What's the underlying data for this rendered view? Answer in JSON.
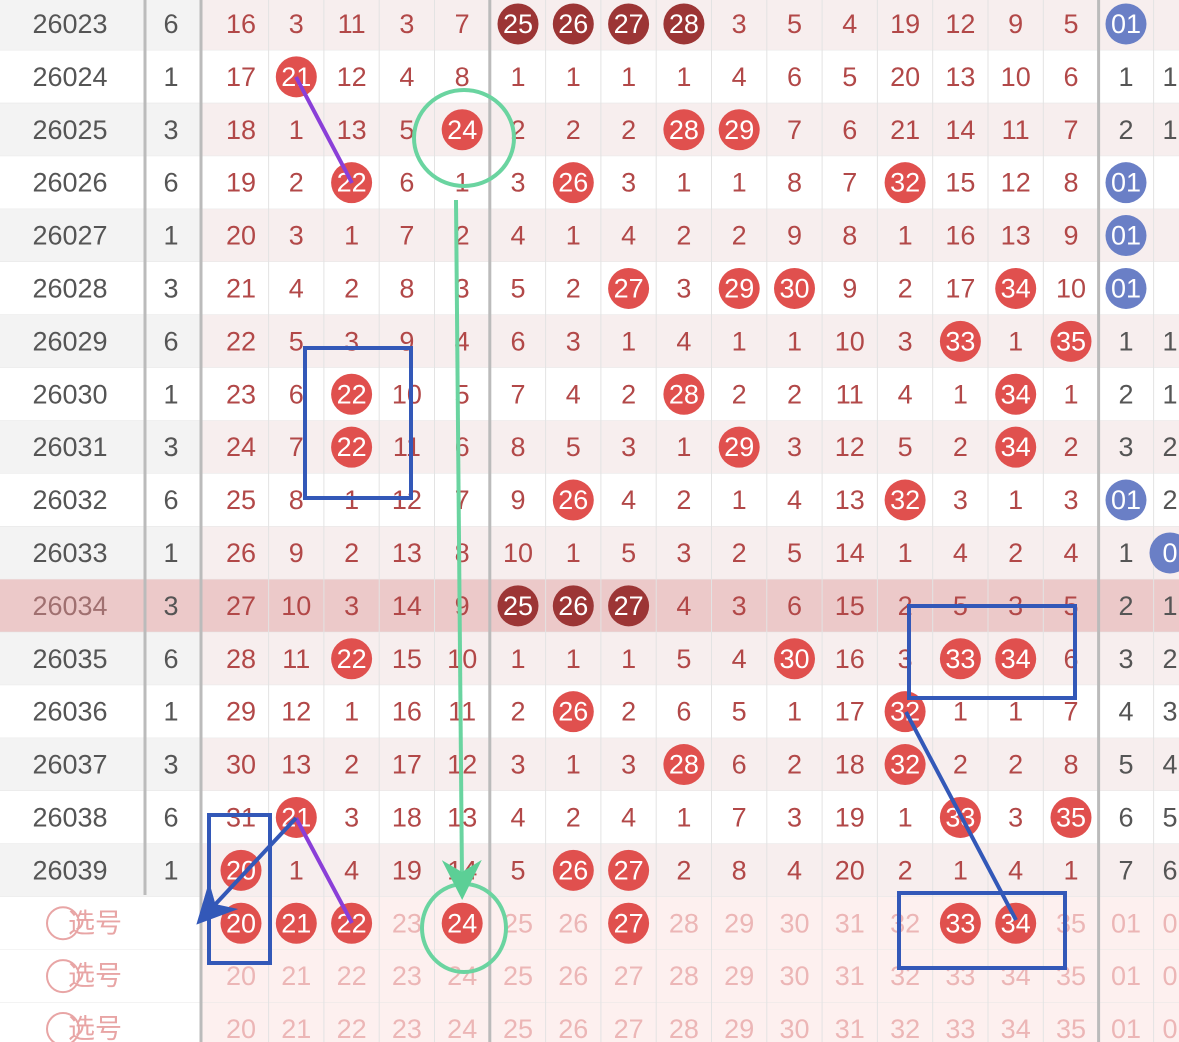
{
  "rows": [
    {
      "issue": "26023",
      "digit": "6",
      "cells": [
        "16",
        "3",
        "11",
        "3",
        "7",
        "25",
        "26",
        "27",
        "28",
        "3",
        "5",
        "4",
        "19",
        "12",
        "9",
        "5",
        "01",
        null
      ],
      "balls": [
        5,
        6,
        7,
        8,
        16
      ],
      "dark": true
    },
    {
      "issue": "26024",
      "digit": "1",
      "cells": [
        "17",
        "21",
        "12",
        "4",
        "8",
        "1",
        "1",
        "1",
        "1",
        "4",
        "6",
        "5",
        "20",
        "13",
        "10",
        "6",
        "1",
        "1"
      ],
      "balls": [
        1
      ]
    },
    {
      "issue": "26025",
      "digit": "3",
      "cells": [
        "18",
        "1",
        "13",
        "5",
        "24",
        "2",
        "2",
        "2",
        "28",
        "29",
        "7",
        "6",
        "21",
        "14",
        "11",
        "7",
        "2",
        "1"
      ],
      "balls": [
        4,
        8,
        9
      ]
    },
    {
      "issue": "26026",
      "digit": "6",
      "cells": [
        "19",
        "2",
        "22",
        "6",
        "1",
        "3",
        "26",
        "3",
        "1",
        "1",
        "8",
        "7",
        "32",
        "15",
        "12",
        "8",
        "01",
        null
      ],
      "balls": [
        2,
        6,
        12,
        16
      ]
    },
    {
      "issue": "26027",
      "digit": "1",
      "cells": [
        "20",
        "3",
        "1",
        "7",
        "2",
        "4",
        "1",
        "4",
        "2",
        "2",
        "9",
        "8",
        "1",
        "16",
        "13",
        "9",
        "01",
        null
      ],
      "balls": [
        16
      ]
    },
    {
      "issue": "26028",
      "digit": "3",
      "cells": [
        "21",
        "4",
        "2",
        "8",
        "3",
        "5",
        "2",
        "27",
        "3",
        "29",
        "30",
        "9",
        "2",
        "17",
        "34",
        "10",
        "01",
        null
      ],
      "balls": [
        7,
        9,
        10,
        14,
        16
      ]
    },
    {
      "issue": "26029",
      "digit": "6",
      "cells": [
        "22",
        "5",
        "3",
        "9",
        "4",
        "6",
        "3",
        "1",
        "4",
        "1",
        "1",
        "10",
        "3",
        "33",
        "1",
        "35",
        "1",
        "1"
      ],
      "balls": [
        13,
        15
      ]
    },
    {
      "issue": "26030",
      "digit": "1",
      "cells": [
        "23",
        "6",
        "22",
        "10",
        "5",
        "7",
        "4",
        "2",
        "28",
        "2",
        "2",
        "11",
        "4",
        "1",
        "34",
        "1",
        "2",
        "1"
      ],
      "balls": [
        2,
        8,
        14
      ]
    },
    {
      "issue": "26031",
      "digit": "3",
      "cells": [
        "24",
        "7",
        "22",
        "11",
        "6",
        "8",
        "5",
        "3",
        "1",
        "29",
        "3",
        "12",
        "5",
        "2",
        "34",
        "2",
        "3",
        "2"
      ],
      "balls": [
        2,
        9,
        14
      ]
    },
    {
      "issue": "26032",
      "digit": "6",
      "cells": [
        "25",
        "8",
        "1",
        "12",
        "7",
        "9",
        "26",
        "4",
        "2",
        "1",
        "4",
        "13",
        "32",
        "3",
        "1",
        "3",
        "01",
        "2"
      ],
      "balls": [
        6,
        12,
        16
      ]
    },
    {
      "issue": "26033",
      "digit": "1",
      "cells": [
        "26",
        "9",
        "2",
        "13",
        "8",
        "10",
        "1",
        "5",
        "3",
        "2",
        "5",
        "14",
        "1",
        "4",
        "2",
        "4",
        "1",
        "0"
      ],
      "balls": [
        17
      ]
    },
    {
      "issue": "26034",
      "digit": "3",
      "cells": [
        "27",
        "10",
        "3",
        "14",
        "9",
        "25",
        "26",
        "27",
        "4",
        "3",
        "6",
        "15",
        "2",
        "5",
        "3",
        "5",
        "2",
        "1"
      ],
      "balls": [
        5,
        6,
        7
      ],
      "dark": true,
      "highlight": true
    },
    {
      "issue": "26035",
      "digit": "6",
      "cells": [
        "28",
        "11",
        "22",
        "15",
        "10",
        "1",
        "1",
        "1",
        "5",
        "4",
        "30",
        "16",
        "3",
        "33",
        "34",
        "6",
        "3",
        "2"
      ],
      "balls": [
        2,
        10,
        13,
        14
      ]
    },
    {
      "issue": "26036",
      "digit": "1",
      "cells": [
        "29",
        "12",
        "1",
        "16",
        "11",
        "2",
        "26",
        "2",
        "6",
        "5",
        "1",
        "17",
        "32",
        "1",
        "1",
        "7",
        "4",
        "3"
      ],
      "balls": [
        6,
        12
      ]
    },
    {
      "issue": "26037",
      "digit": "3",
      "cells": [
        "30",
        "13",
        "2",
        "17",
        "12",
        "3",
        "1",
        "3",
        "28",
        "6",
        "2",
        "18",
        "32",
        "2",
        "2",
        "8",
        "5",
        "4"
      ],
      "balls": [
        8,
        12
      ]
    },
    {
      "issue": "26038",
      "digit": "6",
      "cells": [
        "31",
        "21",
        "3",
        "18",
        "13",
        "4",
        "2",
        "4",
        "1",
        "7",
        "3",
        "19",
        "1",
        "33",
        "3",
        "35",
        "6",
        "5"
      ],
      "balls": [
        1,
        13,
        15
      ]
    },
    {
      "issue": "26039",
      "digit": "1",
      "cells": [
        "20",
        "1",
        "4",
        "19",
        "14",
        "5",
        "26",
        "27",
        "2",
        "8",
        "4",
        "20",
        "2",
        "1",
        "4",
        "1",
        "7",
        "6"
      ],
      "balls": [
        0,
        6,
        7
      ]
    }
  ],
  "select_rows": [
    {
      "label": "选号",
      "cells": [
        "20",
        "21",
        "22",
        "23",
        "24",
        "25",
        "26",
        "27",
        "28",
        "29",
        "30",
        "31",
        "32",
        "33",
        "34",
        "35",
        "01",
        "0"
      ],
      "balls": [
        0,
        1,
        2,
        4,
        7,
        13,
        14
      ]
    },
    {
      "label": "选号",
      "cells": [
        "20",
        "21",
        "22",
        "23",
        "24",
        "25",
        "26",
        "27",
        "28",
        "29",
        "30",
        "31",
        "32",
        "33",
        "34",
        "35",
        "01",
        "0"
      ],
      "balls": []
    },
    {
      "label": "选号",
      "cells": [
        "20",
        "21",
        "22",
        "23",
        "24",
        "25",
        "26",
        "27",
        "28",
        "29",
        "30",
        "31",
        "32",
        "33",
        "34",
        "35",
        "01",
        "0"
      ],
      "balls": []
    }
  ]
}
